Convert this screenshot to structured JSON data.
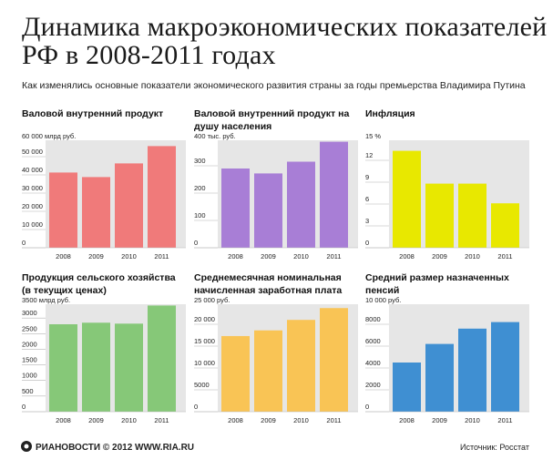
{
  "header": {
    "title": "Динамика макроэкономических показателей РФ в 2008-2011 годах",
    "subtitle": "Как изменялись основные показатели экономического развития страны за годы премьерства Владимира Путина"
  },
  "footer": {
    "logo_text": "РИАНОВОСТИ © 2012 WWW.RIA.RU",
    "source": "Источник: Росстат"
  },
  "chart_data": [
    {
      "type": "bar",
      "title": "Валовой внутренний продукт",
      "unit_label": "60 000 млрд руб.",
      "categories": [
        "2008",
        "2009",
        "2010",
        "2011"
      ],
      "values": [
        41300,
        38800,
        46300,
        55800
      ],
      "ylim": [
        0,
        60000
      ],
      "yticks": [
        0,
        10000,
        20000,
        30000,
        40000,
        50000
      ],
      "ytick_labels": [
        "0",
        "10 000",
        "20 000",
        "30 000",
        "40 000",
        "50 000"
      ],
      "color": "#f07a7a",
      "grid": false
    },
    {
      "type": "bar",
      "title": "Валовой внутренний продукт на душу населения",
      "unit_label": "400 тыс. руб.",
      "categories": [
        "2008",
        "2009",
        "2010",
        "2011"
      ],
      "values": [
        290,
        272,
        315,
        388
      ],
      "ylim": [
        0,
        400
      ],
      "yticks": [
        0,
        100,
        200,
        300
      ],
      "ytick_labels": [
        "0",
        "100",
        "200",
        "300"
      ],
      "color": "#a87ed6",
      "grid": false
    },
    {
      "type": "bar",
      "title": "Инфляция",
      "unit_label": "15 %",
      "categories": [
        "2008",
        "2009",
        "2010",
        "2011"
      ],
      "values": [
        13.3,
        8.8,
        8.8,
        6.1
      ],
      "ylim": [
        0,
        15
      ],
      "yticks": [
        0,
        3,
        6,
        9,
        12
      ],
      "ytick_labels": [
        "0",
        "3",
        "6",
        "9",
        "12"
      ],
      "color": "#e8e800",
      "grid": false
    },
    {
      "type": "bar",
      "title": "Продукция сельского хозяйства (в текущих ценах)",
      "unit_label": "3500 млрд руб.",
      "categories": [
        "2008",
        "2009",
        "2010",
        "2011"
      ],
      "values": [
        2800,
        2850,
        2820,
        3400
      ],
      "ylim": [
        0,
        3500
      ],
      "yticks": [
        0,
        500,
        1000,
        1500,
        2000,
        2500,
        3000
      ],
      "ytick_labels": [
        "0",
        "500",
        "1000",
        "1500",
        "2000",
        "2500",
        "3000"
      ],
      "color": "#86c878",
      "grid": false
    },
    {
      "type": "bar",
      "title": "Среднемесячная номинальная начисленная заработная плата",
      "unit_label": "25 000 руб.",
      "categories": [
        "2008",
        "2009",
        "2010",
        "2011"
      ],
      "values": [
        17300,
        18600,
        21000,
        23700
      ],
      "ylim": [
        0,
        25000
      ],
      "yticks": [
        0,
        5000,
        10000,
        15000,
        20000
      ],
      "ytick_labels": [
        "0",
        "5000",
        "10 000",
        "15 000",
        "20 000"
      ],
      "color": "#f9c455",
      "grid": false
    },
    {
      "type": "bar",
      "title": "Средний размер назначенных пенсий",
      "unit_label": "10 000 руб.",
      "categories": [
        "2008",
        "2009",
        "2010",
        "2011"
      ],
      "values": [
        4500,
        6200,
        7600,
        8200
      ],
      "ylim": [
        0,
        10000
      ],
      "yticks": [
        0,
        2000,
        4000,
        6000,
        8000
      ],
      "ytick_labels": [
        "0",
        "2000",
        "4000",
        "6000",
        "8000"
      ],
      "color": "#3f8fd2",
      "grid": false
    }
  ]
}
